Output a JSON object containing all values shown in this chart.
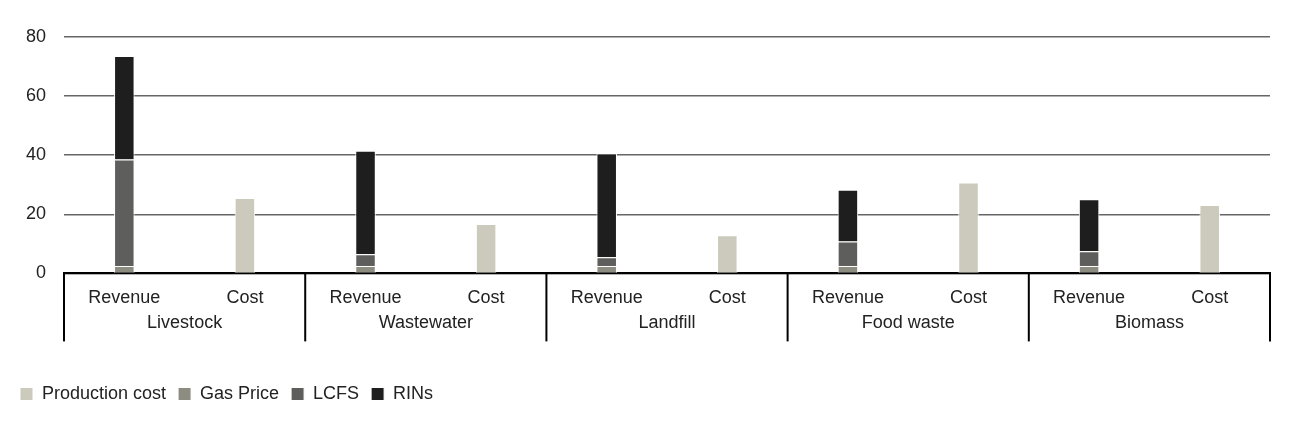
{
  "chart_data": {
    "type": "bar",
    "stacked": true,
    "categories": [
      "Revenue",
      "Cost",
      "Revenue",
      "Cost",
      "Revenue",
      "Cost",
      "Revenue",
      "Cost",
      "Revenue",
      "Cost"
    ],
    "annotations": [
      "Livestock",
      "Wastewater",
      "Landfill",
      "Food waste",
      "Biomass"
    ],
    "series": [
      {
        "name": "Production cost",
        "color": "#cbcabd",
        "values": [
          null,
          25.5,
          null,
          16.7,
          null,
          12.9,
          null,
          30.7,
          null,
          23.1
        ]
      },
      {
        "name": "Gas Price",
        "color": "#8c8c80",
        "values": [
          2.5,
          null,
          2.5,
          null,
          2.5,
          null,
          2.5,
          null,
          2.5,
          null
        ]
      },
      {
        "name": "LCFS",
        "color": "#5e5f5d",
        "values": [
          36,
          null,
          4,
          null,
          3,
          null,
          8.3,
          null,
          5,
          null
        ]
      },
      {
        "name": "RINs",
        "color": "#1e1e1e",
        "values": [
          35,
          null,
          35,
          null,
          35,
          null,
          17.5,
          null,
          17.6,
          null
        ]
      }
    ],
    "ylim": [
      0,
      80
    ],
    "yticks": [
      0,
      20,
      40,
      60,
      80
    ],
    "grid": "y",
    "legend": "bottom left"
  }
}
